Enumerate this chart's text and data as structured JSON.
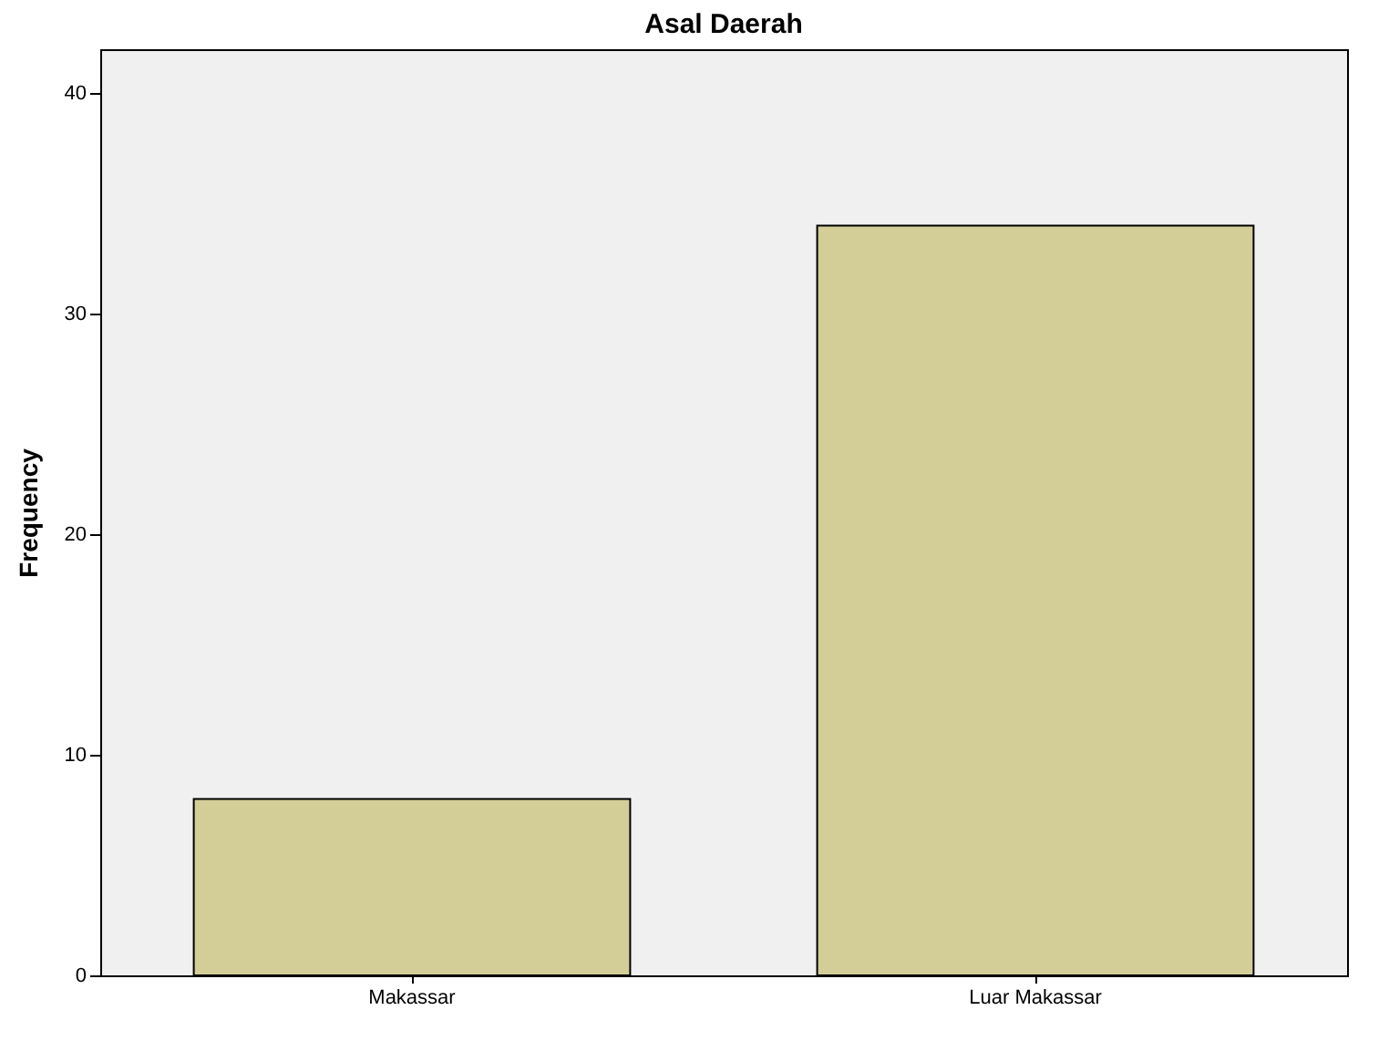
{
  "chart_data": {
    "type": "bar",
    "title": "Asal Daerah",
    "ylabel": "Frequency",
    "categories": [
      "Makassar",
      "Luar Makassar"
    ],
    "values": [
      8,
      34
    ],
    "color": "#d3ce97",
    "ylim": [
      0,
      42
    ],
    "yticks": [
      0,
      10,
      20,
      30,
      40
    ],
    "grid": false
  }
}
